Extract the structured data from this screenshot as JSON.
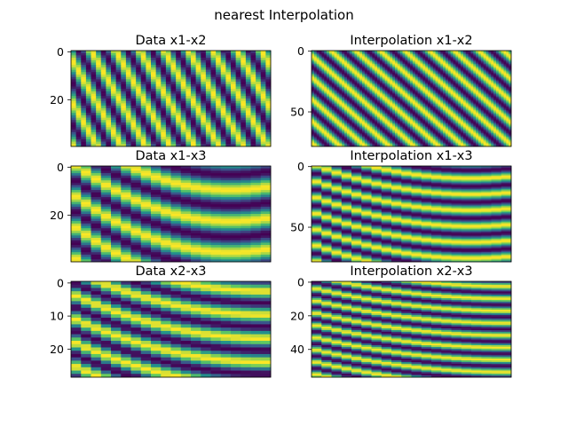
{
  "figure": {
    "suptitle": "nearest Interpolation"
  },
  "colormap": {
    "name": "viridis",
    "stops": [
      "#440154",
      "#3b528b",
      "#21918c",
      "#5ec962",
      "#fde725"
    ]
  },
  "chart_data": [
    {
      "type": "heatmap",
      "title": "Data x1-x2",
      "rows": 40,
      "cols": 40,
      "yticks": [
        0,
        20
      ],
      "ylim": [
        39.5,
        -0.5
      ],
      "pattern": {
        "fx": 2.0,
        "fy": 0.55,
        "curve": 0.0,
        "phase": 0.0
      },
      "grid": false
    },
    {
      "type": "heatmap",
      "title": "Interpolation x1-x2",
      "rows": 79,
      "cols": 79,
      "yticks": [
        0,
        50
      ],
      "ylim": [
        78.5,
        -0.5
      ],
      "pattern": {
        "fx": 2.0,
        "fy": 0.55,
        "curve": 0.0,
        "phase": 0.0
      },
      "grid": false
    },
    {
      "type": "heatmap",
      "title": "Data x1-x3",
      "rows": 40,
      "cols": 20,
      "yticks": [
        0,
        20
      ],
      "ylim": [
        39.5,
        -0.5
      ],
      "pattern": {
        "fx": 1.1,
        "fy": 0.75,
        "curve": 0.9,
        "phase": 0.3
      },
      "grid": false
    },
    {
      "type": "heatmap",
      "title": "Interpolation x1-x3",
      "rows": 79,
      "cols": 20,
      "yticks": [
        0,
        50
      ],
      "ylim": [
        78.5,
        -0.5
      ],
      "pattern": {
        "fx": 1.1,
        "fy": 0.75,
        "curve": 0.9,
        "phase": 0.3
      },
      "grid": false
    },
    {
      "type": "heatmap",
      "title": "Data x2-x3",
      "rows": 29,
      "cols": 20,
      "yticks": [
        0,
        10,
        20
      ],
      "ylim": [
        28.5,
        -0.5
      ],
      "pattern": {
        "fx": 0.9,
        "fy": 1.35,
        "curve": 0.6,
        "phase": 0.7
      },
      "grid": false
    },
    {
      "type": "heatmap",
      "title": "Interpolation x2-x3",
      "rows": 57,
      "cols": 20,
      "yticks": [
        0,
        20,
        40
      ],
      "ylim": [
        56.5,
        -0.5
      ],
      "pattern": {
        "fx": 0.9,
        "fy": 1.35,
        "curve": 0.6,
        "phase": 0.7
      },
      "grid": false
    }
  ]
}
